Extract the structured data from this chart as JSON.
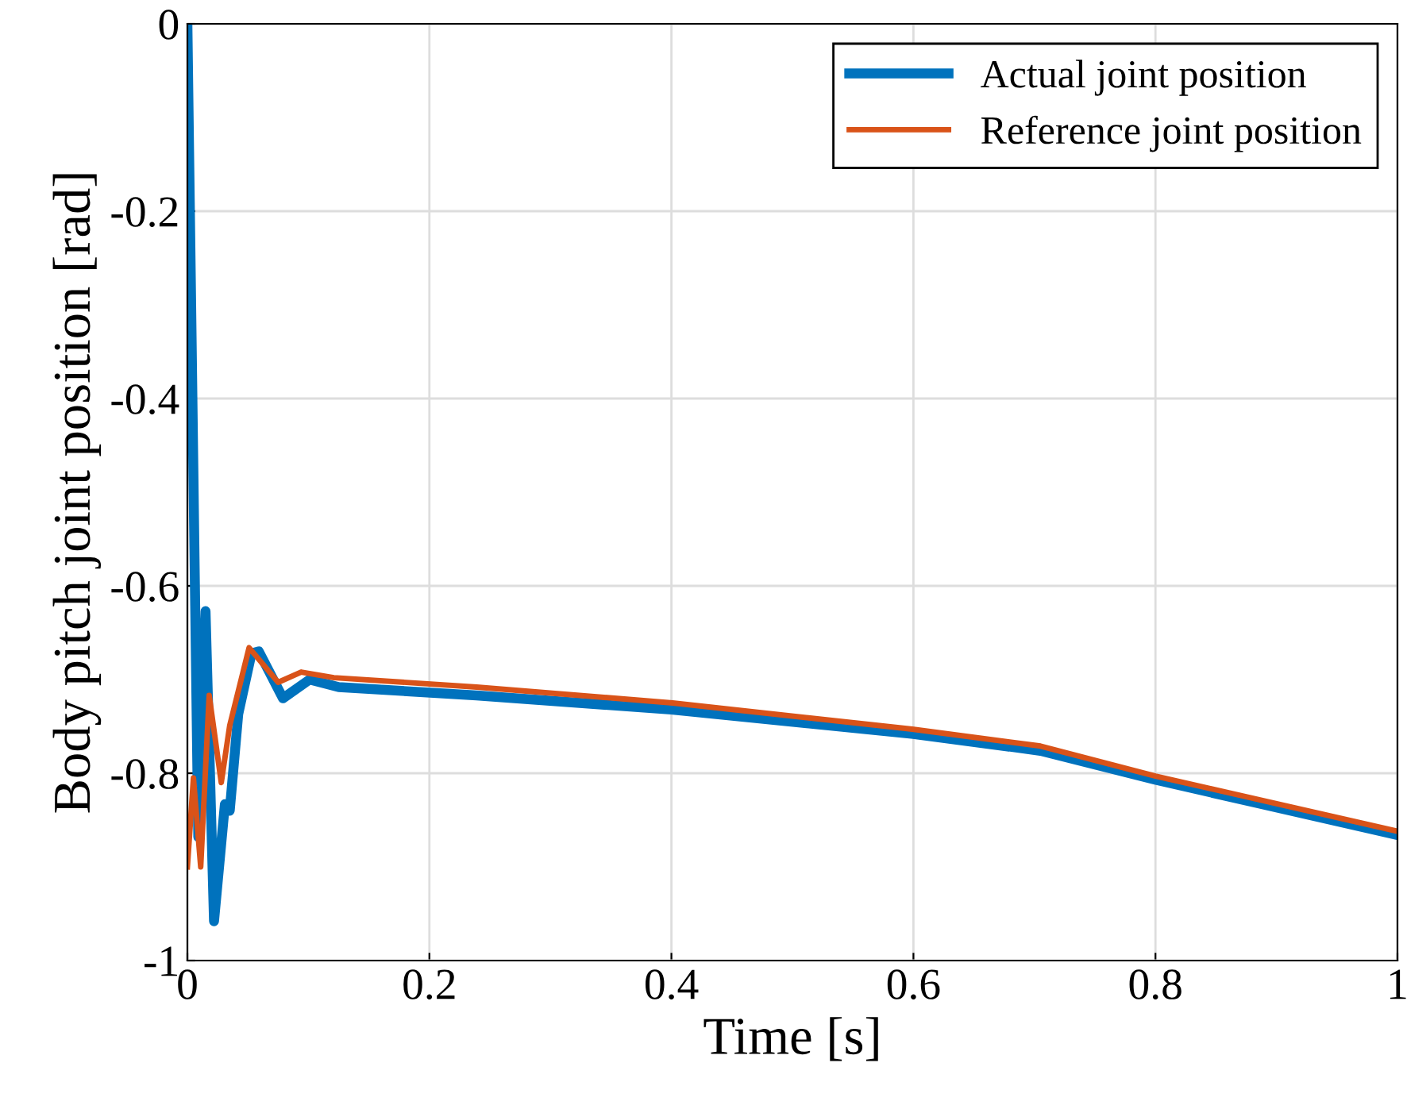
{
  "chart_data": {
    "type": "line",
    "xlabel": "Time [s]",
    "ylabel": "Body pitch joint position [rad]",
    "xlim": [
      0,
      1
    ],
    "ylim": [
      -1,
      0
    ],
    "xticks": [
      0,
      0.2,
      0.4,
      0.6,
      0.8,
      1
    ],
    "yticks": [
      -1,
      -0.8,
      -0.6,
      -0.4,
      -0.2,
      0
    ],
    "grid": true,
    "legend": "top right",
    "line_style": "solid",
    "marker": "none",
    "series": [
      {
        "name": "Actual joint position",
        "color": "#0072bd",
        "x": [
          0,
          0.009,
          0.015,
          0.022,
          0.031,
          0.035,
          0.042,
          0.053,
          0.059,
          0.079,
          0.101,
          0.125,
          0.239,
          0.4,
          0.6,
          0.705,
          0.8,
          1
        ],
        "values": [
          0,
          -0.868,
          -0.627,
          -0.958,
          -0.833,
          -0.84,
          -0.737,
          -0.672,
          -0.67,
          -0.72,
          -0.7,
          -0.708,
          -0.717,
          -0.732,
          -0.758,
          -0.776,
          -0.807,
          -0.866
        ]
      },
      {
        "name": "Reference joint position",
        "color": "#d95319",
        "x": [
          0,
          0.005,
          0.011,
          0.018,
          0.028,
          0.035,
          0.051,
          0.075,
          0.094,
          0.121,
          0.239,
          0.401,
          0.599,
          0.705,
          0.8,
          1
        ],
        "values": [
          -0.9,
          -0.805,
          -0.9,
          -0.717,
          -0.81,
          -0.749,
          -0.666,
          -0.703,
          -0.692,
          -0.698,
          -0.708,
          -0.725,
          -0.753,
          -0.771,
          -0.803,
          -0.862
        ]
      }
    ]
  }
}
